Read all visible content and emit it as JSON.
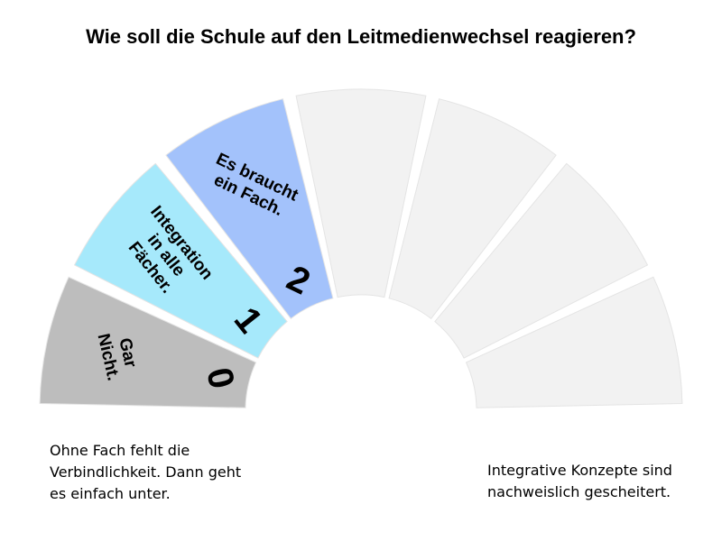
{
  "title": "Wie soll die Schule auf den Leitmedienwechsel reagieren?",
  "scale": [
    {
      "number": "0",
      "label_lines": [
        "Gar",
        "Nicht."
      ],
      "color": "#bdbdbd"
    },
    {
      "number": "1",
      "label_lines": [
        "Integration",
        "in alle",
        "Fächer."
      ],
      "color": "#a6e9fb"
    },
    {
      "number": "2",
      "label_lines": [
        "Es braucht",
        "ein Fach."
      ],
      "color": "#a3c2fb"
    },
    {
      "number": "",
      "label_lines": [],
      "color": "#f2f2f2"
    },
    {
      "number": "",
      "label_lines": [],
      "color": "#f2f2f2"
    },
    {
      "number": "",
      "label_lines": [],
      "color": "#f2f2f2"
    },
    {
      "number": "",
      "label_lines": [],
      "color": "#f2f2f2"
    }
  ],
  "note_left": "Ohne Fach fehlt die Verbindlichkeit. Dann geht es einfach unter.",
  "note_right": "Integrative Konzepte sind nachweislich gescheitert."
}
